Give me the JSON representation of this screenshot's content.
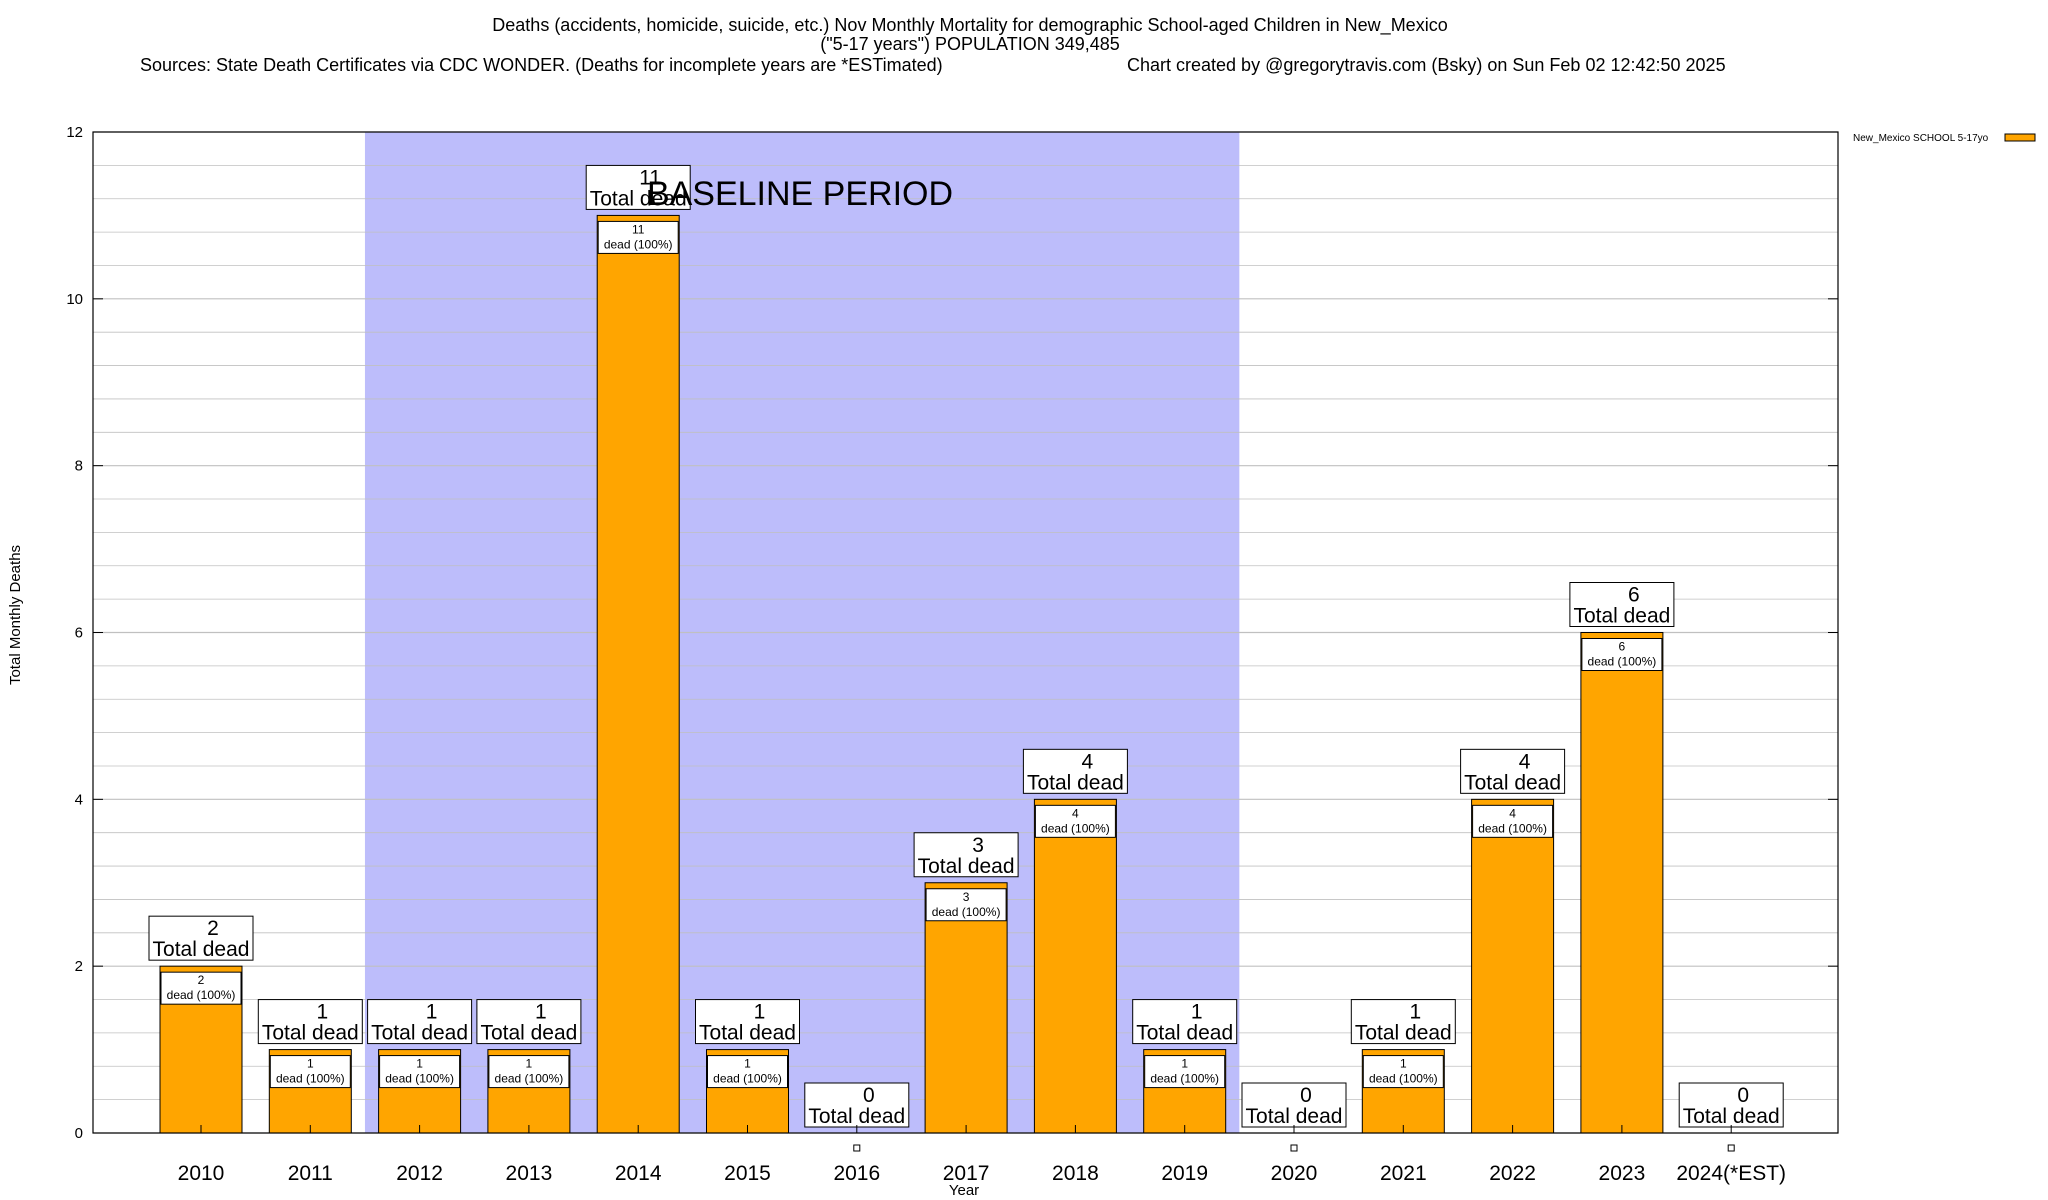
{
  "chart_data": {
    "type": "bar",
    "title_lines": [
      "Deaths (accidents, homicide, suicide, etc.) Nov Monthly Mortality for demographic School-aged Children in New_Mexico",
      "(\"5-17 years\") POPULATION 349,485",
      "Sources: State Death Certificates via CDC WONDER. (Deaths for incomplete years are *ESTimated)",
      "Chart created by @gregorytravis.com (Bsky) on Sun Feb 02 12:42:50 2025"
    ],
    "xlabel": "Year",
    "ylabel": "Total Monthly Deaths",
    "ylim": [
      0,
      12
    ],
    "y_major_ticks": [
      0,
      2,
      4,
      6,
      8,
      10,
      12
    ],
    "y_minor_step": 0.4,
    "grid": true,
    "legend": {
      "label": "New_Mexico SCHOOL 5-17yo",
      "position": "top-right"
    },
    "categories": [
      "2010",
      "2011",
      "2012",
      "2013",
      "2014",
      "2015",
      "2016",
      "2017",
      "2018",
      "2019",
      "2020",
      "2021",
      "2022",
      "2023",
      "2024(*EST)"
    ],
    "series": [
      {
        "name": "New_Mexico SCHOOL 5-17yo",
        "values": [
          2,
          1,
          1,
          1,
          11,
          1,
          0,
          3,
          4,
          1,
          0,
          1,
          4,
          6,
          0
        ]
      }
    ],
    "total_label_word": "Total dead",
    "inner_label_word": "dead (100%)",
    "baseline_period": {
      "label": "BASELINE PERIOD",
      "start_category": "2012",
      "end_category": "2019"
    },
    "colors": {
      "bar": "#ffa500",
      "baseline": "#bdbdfb",
      "grid": "#c0c0c0",
      "axis": "#000000"
    }
  }
}
